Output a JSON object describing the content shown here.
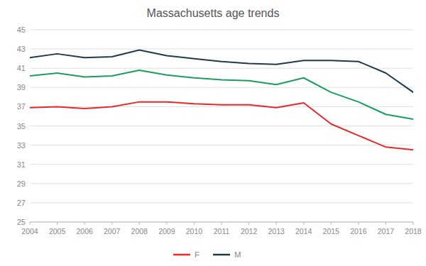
{
  "chart_data": {
    "type": "line",
    "title": "Massachusetts age trends",
    "x": [
      2004,
      2005,
      2006,
      2007,
      2008,
      2009,
      2010,
      2011,
      2012,
      2013,
      2014,
      2015,
      2016,
      2017,
      2018
    ],
    "series": [
      {
        "color": "#1a9e60",
        "values": [
          40.2,
          40.5,
          40.1,
          40.2,
          40.8,
          40.3,
          40.0,
          39.8,
          39.7,
          39.3,
          40.0,
          38.5,
          37.5,
          36.2,
          35.7
        ]
      },
      {
        "name": "M",
        "color": "#1f3a4a",
        "values": [
          42.1,
          42.5,
          42.1,
          42.2,
          42.9,
          42.3,
          42.0,
          41.7,
          41.5,
          41.4,
          41.8,
          41.8,
          41.7,
          40.5,
          38.5
        ]
      },
      {
        "name": "F",
        "color": "#e8282a",
        "values": [
          36.9,
          37.0,
          36.8,
          37.0,
          37.5,
          37.5,
          37.3,
          37.2,
          37.2,
          36.9,
          37.4,
          35.2,
          34.0,
          32.8,
          32.5
        ]
      }
    ],
    "xlim": [
      2004,
      2018
    ],
    "xticks": [
      2004,
      2005,
      2006,
      2007,
      2008,
      2009,
      2010,
      2011,
      2012,
      2013,
      2014,
      2015,
      2016,
      2017,
      2018
    ],
    "ylim": [
      25,
      45
    ],
    "yticks": [
      25,
      27,
      29,
      31,
      33,
      35,
      37,
      39,
      41,
      43,
      45
    ],
    "grid": true,
    "legend": "bottom"
  }
}
